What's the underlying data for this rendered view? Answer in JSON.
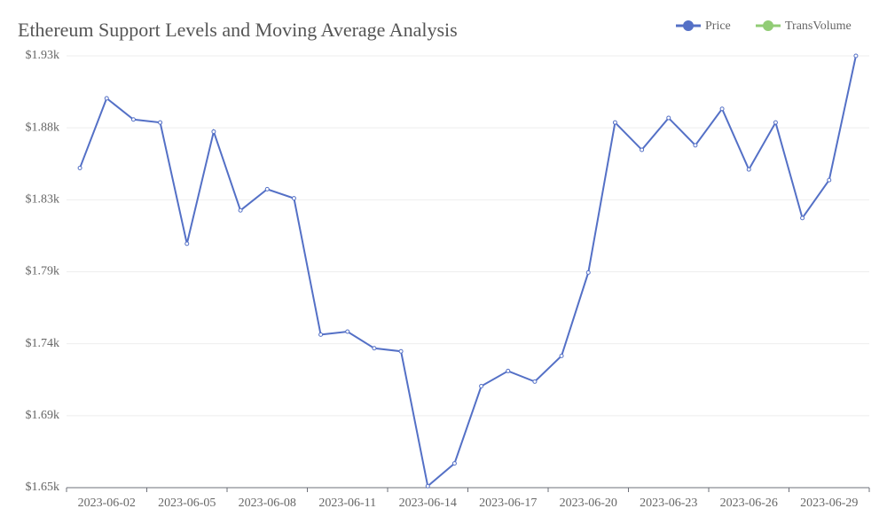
{
  "chart_data": {
    "type": "line",
    "title": "Ethereum Support Levels and Moving Average Analysis",
    "categories": [
      null,
      "2023-06-02",
      null,
      null,
      "2023-06-05",
      null,
      null,
      "2023-06-08",
      null,
      null,
      "2023-06-11",
      null,
      null,
      "2023-06-14",
      null,
      null,
      "2023-06-17",
      null,
      null,
      "2023-06-20",
      null,
      null,
      "2023-06-23",
      null,
      null,
      "2023-06-26",
      null,
      null,
      "2023-06-29",
      null
    ],
    "series": [
      {
        "name": "Price",
        "color": "#5470c6",
        "values": [
          1856,
          1902,
          1888,
          1886,
          1806,
          1880,
          1828,
          1842,
          1836,
          1746,
          1748,
          1737,
          1735,
          1646,
          1661,
          1712,
          1722,
          1715,
          1732,
          1787,
          1886,
          1868,
          1889,
          1871,
          1895,
          1855,
          1886,
          1823,
          1848,
          1930
        ]
      },
      {
        "name": "TransVolume",
        "color": "#91cc75",
        "values": [
          null,
          null,
          null,
          null,
          null,
          null,
          null,
          null,
          null,
          null,
          null,
          null,
          null,
          null,
          null,
          null,
          null,
          null,
          null,
          null,
          null,
          null,
          null,
          null,
          null,
          null,
          null,
          null,
          null,
          null
        ]
      }
    ],
    "ylim": [
      1645,
      1930
    ],
    "yticks": [
      {
        "value": 1645,
        "label": "$1.65k"
      },
      {
        "value": 1692.5,
        "label": "$1.69k"
      },
      {
        "value": 1740,
        "label": "$1.74k"
      },
      {
        "value": 1787.5,
        "label": "$1.79k"
      },
      {
        "value": 1835,
        "label": "$1.83k"
      },
      {
        "value": 1882.5,
        "label": "$1.88k"
      },
      {
        "value": 1930,
        "label": "$1.93k"
      }
    ],
    "grid": true,
    "legend": "top-right"
  }
}
